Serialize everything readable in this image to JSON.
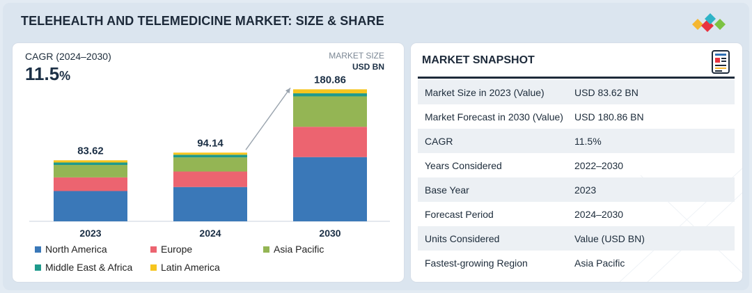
{
  "header": {
    "title": "TELEHEALTH AND TELEMEDICINE MARKET: SIZE & SHARE"
  },
  "chart_panel": {
    "cagr_label": "CAGR (2024–2030)",
    "cagr_value": "11.5",
    "cagr_unit": "%",
    "market_size_label": "MARKET SIZE",
    "market_size_unit": "USD BN"
  },
  "chart_data": {
    "type": "bar",
    "stacked": true,
    "title": "",
    "xlabel": "",
    "ylabel": "",
    "categories": [
      "2023",
      "2024",
      "2030"
    ],
    "totals": [
      83.62,
      94.14,
      180.86
    ],
    "total_labels": [
      "83.62",
      "94.14",
      "180.86"
    ],
    "series": [
      {
        "name": "North America",
        "color": "#3a78b8",
        "values": [
          41.5,
          47.0,
          88.0
        ]
      },
      {
        "name": "Europe",
        "color": "#ec6470",
        "values": [
          18.7,
          21.2,
          41.5
        ]
      },
      {
        "name": "Asia Pacific",
        "color": "#94b554",
        "values": [
          17.0,
          19.4,
          41.7
        ]
      },
      {
        "name": "Middle East & Africa",
        "color": "#1f9a8c",
        "values": [
          3.4,
          3.6,
          4.2
        ]
      },
      {
        "name": "Latin America",
        "color": "#f6c51e",
        "values": [
          3.02,
          2.94,
          5.46
        ]
      }
    ],
    "ylim": [
      0,
      185
    ],
    "grid": false,
    "legend_position": "bottom",
    "annotation": "growth-arrow-2024-to-2030"
  },
  "snapshot": {
    "title": "MARKET SNAPSHOT",
    "icon": "report-document-icon",
    "rows": [
      {
        "label": "Market Size in 2023 (Value)",
        "value": "USD 83.62 BN"
      },
      {
        "label": "Market Forecast in 2030 (Value)",
        "value": "USD 180.86 BN"
      },
      {
        "label": "CAGR",
        "value": "11.5%"
      },
      {
        "label": "Years Considered",
        "value": "2022–2030"
      },
      {
        "label": "Base Year",
        "value": "2023"
      },
      {
        "label": "Forecast Period",
        "value": "2024–2030"
      },
      {
        "label": "Units Considered",
        "value": "Value (USD BN)"
      },
      {
        "label": "Fastest-growing Region",
        "value": "Asia Pacific"
      }
    ]
  },
  "logo": {
    "icon": "diamond-cluster-logo",
    "colors": [
      "#f5b731",
      "#e8323f",
      "#2fb3c7",
      "#7cc242"
    ]
  }
}
